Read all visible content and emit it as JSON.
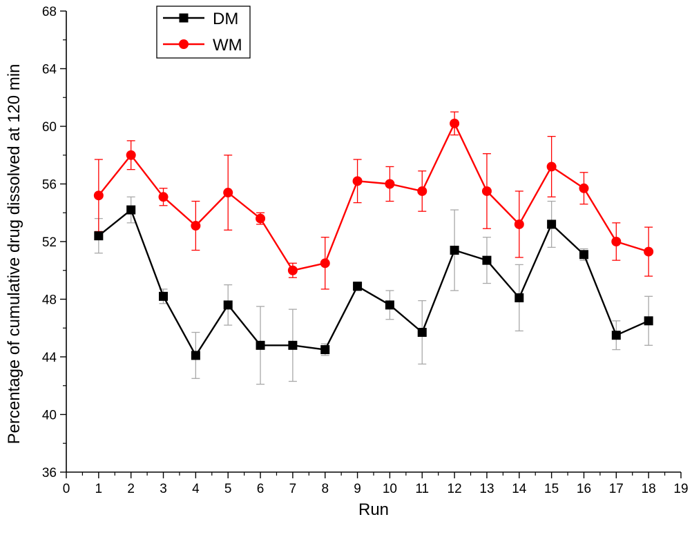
{
  "chart_data": {
    "type": "line",
    "xlabel": "Run",
    "ylabel": "Percentage of cumulative drug dissolved at 120 min",
    "xlim": [
      0,
      19
    ],
    "ylim": [
      36,
      68
    ],
    "xticks": [
      0,
      1,
      2,
      3,
      4,
      5,
      6,
      7,
      8,
      9,
      10,
      11,
      12,
      13,
      14,
      15,
      16,
      17,
      18,
      19
    ],
    "yticks": [
      36,
      40,
      44,
      48,
      52,
      56,
      60,
      64,
      68
    ],
    "grid": false,
    "legend": "top-left",
    "x": [
      1,
      2,
      3,
      4,
      5,
      6,
      7,
      8,
      9,
      10,
      11,
      12,
      13,
      14,
      15,
      16,
      17,
      18
    ],
    "series": [
      {
        "name": "DM",
        "color": "#000000",
        "marker": "square",
        "values": [
          52.4,
          54.2,
          48.2,
          44.1,
          47.6,
          44.8,
          44.8,
          44.5,
          48.9,
          47.6,
          45.7,
          51.4,
          50.7,
          48.1,
          53.2,
          51.1,
          45.5,
          46.5
        ],
        "error": [
          1.2,
          0.9,
          0.5,
          1.6,
          1.4,
          2.7,
          2.5,
          0.4,
          0.3,
          1.0,
          2.2,
          2.8,
          1.6,
          2.3,
          1.6,
          0.4,
          1.0,
          1.7
        ],
        "error_color": "#a8a8a8"
      },
      {
        "name": "WM",
        "color": "#ff0000",
        "marker": "circle",
        "values": [
          55.2,
          58.0,
          55.1,
          53.1,
          55.4,
          53.6,
          50.0,
          50.5,
          56.2,
          56.0,
          55.5,
          60.2,
          55.5,
          53.2,
          57.2,
          55.7,
          52.0,
          51.3
        ],
        "error": [
          2.5,
          1.0,
          0.6,
          1.7,
          2.6,
          0.4,
          0.5,
          1.8,
          1.5,
          1.2,
          1.4,
          0.8,
          2.6,
          2.3,
          2.1,
          1.1,
          1.3,
          1.7
        ],
        "error_color": "#ff0000"
      }
    ]
  }
}
